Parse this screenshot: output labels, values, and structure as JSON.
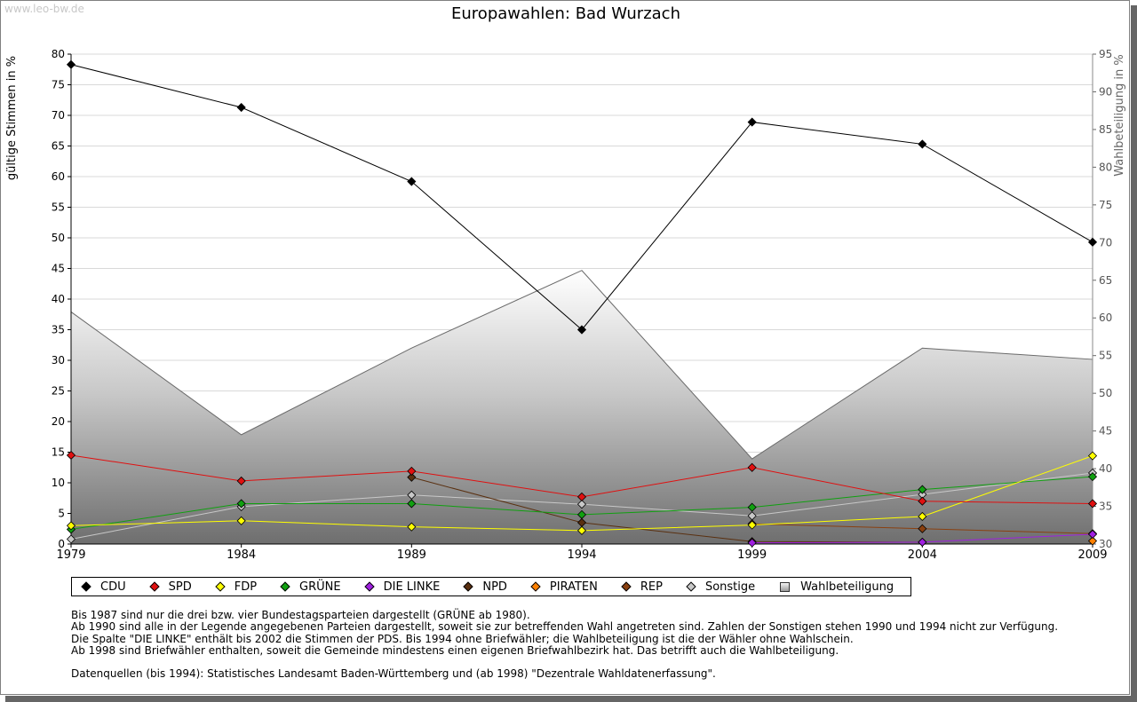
{
  "watermark": "www.leo-bw.de",
  "chart_data": {
    "type": "line",
    "title": "Europawahlen: Bad Wurzach",
    "ylabel": "gültige Stimmen in %",
    "y2label": "Wahlbeteiligung in %",
    "ylim": [
      0,
      80
    ],
    "y2lim": [
      30,
      95
    ],
    "yticks": [
      "0",
      "5",
      "10",
      "15",
      "20",
      "25",
      "30",
      "35",
      "40",
      "45",
      "50",
      "55",
      "60",
      "65",
      "70",
      "75",
      "80"
    ],
    "y2ticks": [
      "30",
      "35",
      "40",
      "45",
      "50",
      "55",
      "60",
      "65",
      "70",
      "75",
      "80",
      "85",
      "90",
      "95"
    ],
    "x": [
      "1979",
      "1984",
      "1989",
      "1994",
      "1999",
      "2004",
      "2009"
    ],
    "grid": true,
    "legend_position": "bottom",
    "series": [
      {
        "name": "CDU",
        "color": "#000000",
        "values": [
          78.3,
          71.3,
          59.2,
          35.0,
          68.9,
          65.3,
          49.3
        ]
      },
      {
        "name": "SPD",
        "color": "#e01010",
        "values": [
          14.5,
          10.3,
          11.9,
          7.7,
          12.5,
          7.0,
          6.6
        ]
      },
      {
        "name": "FDP",
        "color": "#ffff00",
        "values": [
          3.0,
          3.8,
          2.8,
          2.2,
          3.1,
          4.5,
          14.4
        ]
      },
      {
        "name": "GRÜNE",
        "color": "#10a010",
        "values": [
          2.4,
          6.6,
          6.6,
          4.8,
          6.0,
          8.9,
          11.0
        ]
      },
      {
        "name": "DIE LINKE",
        "color": "#a020e0",
        "values": [
          null,
          null,
          null,
          null,
          0.2,
          0.3,
          1.6
        ]
      },
      {
        "name": "NPD",
        "color": "#5a3010",
        "values": [
          null,
          null,
          10.9,
          3.5,
          0.4,
          0.3,
          null
        ]
      },
      {
        "name": "PIRATEN",
        "color": "#ff8000",
        "values": [
          null,
          null,
          null,
          null,
          null,
          null,
          0.5
        ]
      },
      {
        "name": "REP",
        "color": "#8a4010",
        "values": [
          null,
          null,
          null,
          null,
          3.3,
          2.5,
          1.7
        ]
      },
      {
        "name": "Sonstige",
        "color": "#c8c8c8",
        "values": [
          0.8,
          6.1,
          8.0,
          6.5,
          4.6,
          8.1,
          11.6
        ]
      }
    ],
    "turnout": {
      "name": "Wahlbeteiligung",
      "values": [
        60.8,
        44.5,
        56.0,
        66.3,
        41.3,
        56.0,
        54.5
      ]
    }
  },
  "notes": [
    "Bis 1987 sind nur die drei bzw. vier Bundestagsparteien dargestellt (GRÜNE ab 1980).",
    "Ab 1990 sind alle in der Legende angegebenen Parteien dargestellt, soweit sie zur betreffenden Wahl angetreten sind. Zahlen der Sonstigen stehen 1990 und 1994 nicht zur Verfügung.",
    "Die Spalte \"DIE LINKE\" enthält bis 2002 die Stimmen der PDS. Bis 1994 ohne Briefwähler; die Wahlbeteiligung ist die der Wähler ohne Wahlschein.",
    "Ab 1998 sind Briefwähler enthalten, soweit die Gemeinde mindestens einen eigenen Briefwahlbezirk hat. Das betrifft auch die Wahlbeteiligung."
  ],
  "source": "Datenquellen (bis 1994): Statistisches Landesamt Baden-Württemberg und (ab 1998) \"Dezentrale Wahldatenerfassung\"."
}
